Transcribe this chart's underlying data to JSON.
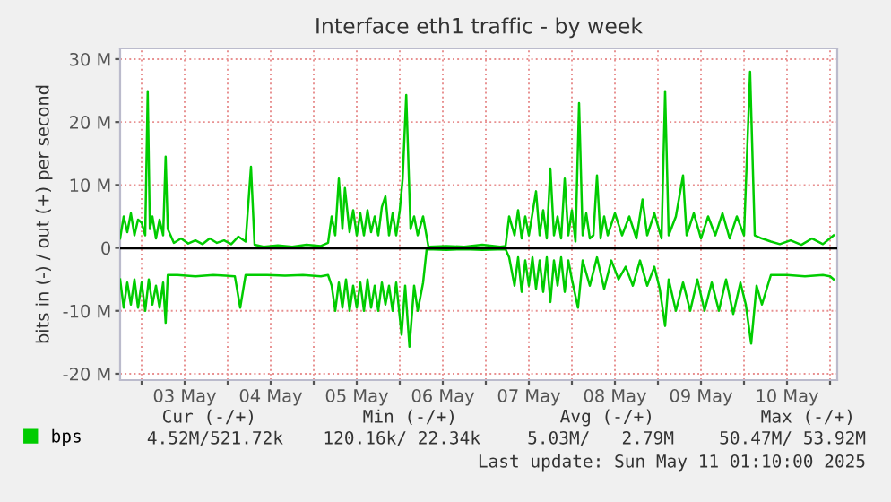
{
  "chart_data": {
    "type": "line",
    "title": "Interface eth1 traffic - by week",
    "ylabel": "bits in (-) / out (+) per second",
    "xlim": [
      "2025-05-02T18:00",
      "2025-05-11T02:00"
    ],
    "ylim": [
      -21,
      31.7
    ],
    "xticks": [
      {
        "value": "2025-05-03T00:00",
        "label": null
      },
      {
        "value": "2025-05-03T12:00",
        "label": "03 May"
      },
      {
        "value": "2025-05-04T00:00",
        "label": null
      },
      {
        "value": "2025-05-04T12:00",
        "label": "04 May"
      },
      {
        "value": "2025-05-05T00:00",
        "label": null
      },
      {
        "value": "2025-05-05T12:00",
        "label": "05 May"
      },
      {
        "value": "2025-05-06T00:00",
        "label": null
      },
      {
        "value": "2025-05-06T12:00",
        "label": "06 May"
      },
      {
        "value": "2025-05-07T00:00",
        "label": null
      },
      {
        "value": "2025-05-07T12:00",
        "label": "07 May"
      },
      {
        "value": "2025-05-08T00:00",
        "label": null
      },
      {
        "value": "2025-05-08T12:00",
        "label": "08 May"
      },
      {
        "value": "2025-05-09T00:00",
        "label": null
      },
      {
        "value": "2025-05-09T12:00",
        "label": "09 May"
      },
      {
        "value": "2025-05-10T00:00",
        "label": null
      },
      {
        "value": "2025-05-10T12:00",
        "label": "10 May"
      },
      {
        "value": "2025-05-11T00:00",
        "label": null
      }
    ],
    "yticks": [
      {
        "value": -20,
        "label": "-20 M"
      },
      {
        "value": -10,
        "label": "-10 M"
      },
      0,
      {
        "value": 10,
        "label": "10 M"
      },
      {
        "value": 20,
        "label": "20 M"
      },
      {
        "value": 30,
        "label": "30 M"
      }
    ],
    "grid": true,
    "legend": "bottom left",
    "marker": "none",
    "line_style": "solid",
    "ref_lines": [
      {
        "axis": "y",
        "value": 0,
        "color": "#000000"
      }
    ],
    "series": [
      {
        "name": "bps",
        "color": "#00cc00",
        "x": [
          "2025-05-02T18:00",
          "2025-05-02T19:00",
          "2025-05-02T20:00",
          "2025-05-02T21:00",
          "2025-05-02T22:00",
          "2025-05-02T23:00",
          "2025-05-03T00:00",
          "2025-05-03T01:00",
          "2025-05-03T01:42",
          "2025-05-03T02:18",
          "2025-05-03T03:00",
          "2025-05-03T04:00",
          "2025-05-03T05:00",
          "2025-05-03T06:00",
          "2025-05-03T06:42",
          "2025-05-03T07:18",
          "2025-05-03T09:00",
          "2025-05-03T11:00",
          "2025-05-03T13:00",
          "2025-05-03T15:00",
          "2025-05-03T17:00",
          "2025-05-03T19:00",
          "2025-05-03T21:00",
          "2025-05-03T23:00",
          "2025-05-04T01:00",
          "2025-05-04T03:00",
          "2025-05-04T05:00",
          "2025-05-04T06:30",
          "2025-05-04T07:30",
          "2025-05-04T10:00",
          "2025-05-04T14:00",
          "2025-05-04T18:00",
          "2025-05-04T22:00",
          "2025-05-05T02:00",
          "2025-05-05T04:00",
          "2025-05-05T05:00",
          "2025-05-05T06:00",
          "2025-05-05T07:00",
          "2025-05-05T08:00",
          "2025-05-05T08:42",
          "2025-05-05T10:00",
          "2025-05-05T11:00",
          "2025-05-05T12:00",
          "2025-05-05T13:00",
          "2025-05-05T14:00",
          "2025-05-05T15:00",
          "2025-05-05T16:00",
          "2025-05-05T17:00",
          "2025-05-05T18:00",
          "2025-05-05T19:00",
          "2025-05-05T20:00",
          "2025-05-05T21:00",
          "2025-05-05T22:00",
          "2025-05-05T23:00",
          "2025-05-06T00:00",
          "2025-05-06T00:48",
          "2025-05-06T01:48",
          "2025-05-06T03:00",
          "2025-05-06T04:00",
          "2025-05-06T05:00",
          "2025-05-06T06:30",
          "2025-05-06T08:00",
          "2025-05-06T13:00",
          "2025-05-06T18:00",
          "2025-05-06T23:00",
          "2025-05-07T04:00",
          "2025-05-07T05:30",
          "2025-05-07T06:30",
          "2025-05-07T08:00",
          "2025-05-07T09:00",
          "2025-05-07T10:00",
          "2025-05-07T11:00",
          "2025-05-07T12:00",
          "2025-05-07T13:00",
          "2025-05-07T14:00",
          "2025-05-07T15:00",
          "2025-05-07T16:00",
          "2025-05-07T17:00",
          "2025-05-07T18:00",
          "2025-05-07T19:00",
          "2025-05-07T20:00",
          "2025-05-07T21:00",
          "2025-05-07T22:00",
          "2025-05-07T23:00",
          "2025-05-08T00:00",
          "2025-05-08T01:00",
          "2025-05-08T02:00",
          "2025-05-08T03:00",
          "2025-05-08T04:00",
          "2025-05-08T05:00",
          "2025-05-08T06:00",
          "2025-05-08T07:00",
          "2025-05-08T08:00",
          "2025-05-08T09:00",
          "2025-05-08T10:00",
          "2025-05-08T12:00",
          "2025-05-08T14:00",
          "2025-05-08T16:00",
          "2025-05-08T18:00",
          "2025-05-08T19:42",
          "2025-05-08T21:00",
          "2025-05-08T23:00",
          "2025-05-09T01:00",
          "2025-05-09T02:00",
          "2025-05-09T03:00",
          "2025-05-09T05:00",
          "2025-05-09T07:00",
          "2025-05-09T08:00",
          "2025-05-09T10:00",
          "2025-05-09T12:00",
          "2025-05-09T14:00",
          "2025-05-09T16:00",
          "2025-05-09T18:00",
          "2025-05-09T20:00",
          "2025-05-09T22:00",
          "2025-05-10T00:00",
          "2025-05-10T01:42",
          "2025-05-10T03:00",
          "2025-05-10T05:00",
          "2025-05-10T07:30",
          "2025-05-10T10:00",
          "2025-05-10T13:00",
          "2025-05-10T16:00",
          "2025-05-10T19:00",
          "2025-05-10T22:00",
          "2025-05-11T01:00"
        ],
        "values": [
          1.5,
          5,
          2.5,
          5.5,
          2,
          4.5,
          4,
          2,
          24.9,
          3,
          5,
          1.5,
          4.5,
          2,
          14.5,
          3,
          0.8,
          1.5,
          0.7,
          1.2,
          0.6,
          1.5,
          0.8,
          1.2,
          0.6,
          1.8,
          1,
          12.9,
          0.5,
          0.2,
          0.4,
          0.2,
          0.5,
          0.3,
          0.8,
          5,
          2,
          11,
          3,
          9.5,
          2.5,
          6,
          2,
          5.5,
          2,
          6,
          2.5,
          5,
          2,
          6.5,
          8.2,
          2,
          5.5,
          2,
          6,
          11,
          24.3,
          3,
          5,
          2,
          5,
          0.2,
          0.3,
          0.2,
          0.5,
          0.2,
          0.3,
          5,
          2,
          6,
          1.5,
          5,
          2,
          5.5,
          9,
          2,
          6,
          1.5,
          12.6,
          2,
          5,
          1.5,
          11,
          2,
          6,
          1,
          23,
          2,
          5.5,
          1.5,
          2,
          11.5,
          1.5,
          5,
          2,
          5.5,
          2,
          5,
          1.5,
          7.7,
          2,
          5.5,
          1.5,
          24.9,
          2,
          5,
          11.5,
          2,
          5.5,
          1.5,
          5,
          2,
          5.5,
          1.5,
          5,
          2,
          28,
          2,
          1.5,
          1,
          0.6,
          1.2,
          0.5,
          1.5,
          0.6,
          2
        ]
      },
      {
        "color": "#00cc00",
        "x": [
          "2025-05-02T18:00",
          "2025-05-02T19:00",
          "2025-05-02T20:00",
          "2025-05-02T21:00",
          "2025-05-02T22:00",
          "2025-05-02T23:00",
          "2025-05-03T00:00",
          "2025-05-03T01:00",
          "2025-05-03T02:00",
          "2025-05-03T03:00",
          "2025-05-03T04:00",
          "2025-05-03T05:00",
          "2025-05-03T06:00",
          "2025-05-03T06:42",
          "2025-05-03T07:18",
          "2025-05-03T10:00",
          "2025-05-03T15:00",
          "2025-05-03T20:00",
          "2025-05-04T02:00",
          "2025-05-04T03:30",
          "2025-05-04T05:00",
          "2025-05-04T11:00",
          "2025-05-04T16:00",
          "2025-05-04T21:00",
          "2025-05-05T02:00",
          "2025-05-05T04:00",
          "2025-05-05T05:00",
          "2025-05-05T06:00",
          "2025-05-05T07:00",
          "2025-05-05T08:00",
          "2025-05-05T09:00",
          "2025-05-05T10:00",
          "2025-05-05T11:00",
          "2025-05-05T12:00",
          "2025-05-05T13:00",
          "2025-05-05T14:00",
          "2025-05-05T15:00",
          "2025-05-05T16:00",
          "2025-05-05T17:00",
          "2025-05-05T18:00",
          "2025-05-05T19:00",
          "2025-05-05T20:00",
          "2025-05-05T21:00",
          "2025-05-05T22:00",
          "2025-05-05T23:00",
          "2025-05-06T00:30",
          "2025-05-06T01:30",
          "2025-05-06T02:42",
          "2025-05-06T04:00",
          "2025-05-06T05:00",
          "2025-05-06T06:30",
          "2025-05-06T07:30",
          "2025-05-06T13:00",
          "2025-05-06T18:00",
          "2025-05-06T23:00",
          "2025-05-07T05:30",
          "2025-05-07T06:30",
          "2025-05-07T08:00",
          "2025-05-07T09:00",
          "2025-05-07T10:00",
          "2025-05-07T11:00",
          "2025-05-07T12:00",
          "2025-05-07T13:00",
          "2025-05-07T14:00",
          "2025-05-07T15:00",
          "2025-05-07T16:00",
          "2025-05-07T17:00",
          "2025-05-07T18:00",
          "2025-05-07T19:00",
          "2025-05-07T20:00",
          "2025-05-07T21:00",
          "2025-05-07T22:00",
          "2025-05-07T23:00",
          "2025-05-08T00:00",
          "2025-05-08T01:42",
          "2025-05-08T03:00",
          "2025-05-08T05:00",
          "2025-05-08T07:00",
          "2025-05-08T09:00",
          "2025-05-08T11:00",
          "2025-05-08T13:00",
          "2025-05-08T15:00",
          "2025-05-08T17:00",
          "2025-05-08T19:00",
          "2025-05-08T21:00",
          "2025-05-08T23:00",
          "2025-05-09T00:30",
          "2025-05-09T02:00",
          "2025-05-09T03:00",
          "2025-05-09T05:00",
          "2025-05-09T07:00",
          "2025-05-09T09:00",
          "2025-05-09T11:00",
          "2025-05-09T13:00",
          "2025-05-09T15:00",
          "2025-05-09T17:00",
          "2025-05-09T19:00",
          "2025-05-09T21:00",
          "2025-05-09T23:00",
          "2025-05-10T00:30",
          "2025-05-10T02:00",
          "2025-05-10T03:30",
          "2025-05-10T05:00",
          "2025-05-10T07:30",
          "2025-05-10T12:00",
          "2025-05-10T17:00",
          "2025-05-10T22:00",
          "2025-05-11T00:00",
          "2025-05-11T01:00"
        ],
        "values": [
          -5,
          -9.5,
          -5.5,
          -9,
          -5,
          -9.5,
          -5.5,
          -10,
          -5,
          -9,
          -6,
          -9.5,
          -5.5,
          -11.9,
          -4.3,
          -4.3,
          -4.5,
          -4.3,
          -4.5,
          -9.5,
          -4.3,
          -4.3,
          -4.4,
          -4.3,
          -4.5,
          -4.3,
          -6,
          -10,
          -5.5,
          -9.5,
          -5,
          -10,
          -6,
          -9.5,
          -5.5,
          -10,
          -5,
          -9.5,
          -6,
          -10,
          -5.5,
          -9,
          -6,
          -10,
          -5.5,
          -13.8,
          -6,
          -15.7,
          -6,
          -10,
          -5.5,
          -0.2,
          -0.3,
          -0.2,
          -0.3,
          -0.2,
          -1.5,
          -6,
          -1.5,
          -7,
          -2,
          -6,
          -1.5,
          -6.5,
          -2,
          -7,
          -1.5,
          -8.6,
          -2,
          -6,
          -1.5,
          -7,
          -2,
          -5,
          -9.5,
          -2,
          -6,
          -1.5,
          -6.5,
          -2,
          -5,
          -3,
          -6,
          -2,
          -6,
          -3,
          -6.5,
          -12.4,
          -5,
          -10,
          -5.5,
          -10,
          -5,
          -10,
          -5.5,
          -10,
          -5,
          -10.5,
          -5.5,
          -9,
          -15.2,
          -6,
          -9,
          -4.3,
          -4.3,
          -4.5,
          -4.3,
          -4.5,
          -5
        ]
      }
    ],
    "annotations": [
      "Cur (-/+)",
      "Min (-/+)",
      "Avg (-/+)",
      "Max (-/+)",
      "4.52M/521.72k",
      "120.16k/ 22.34k",
      "5.03M/   2.79M",
      "50.47M/ 53.92M",
      "Last update: Sun May 11 01:10:00 2025"
    ]
  }
}
